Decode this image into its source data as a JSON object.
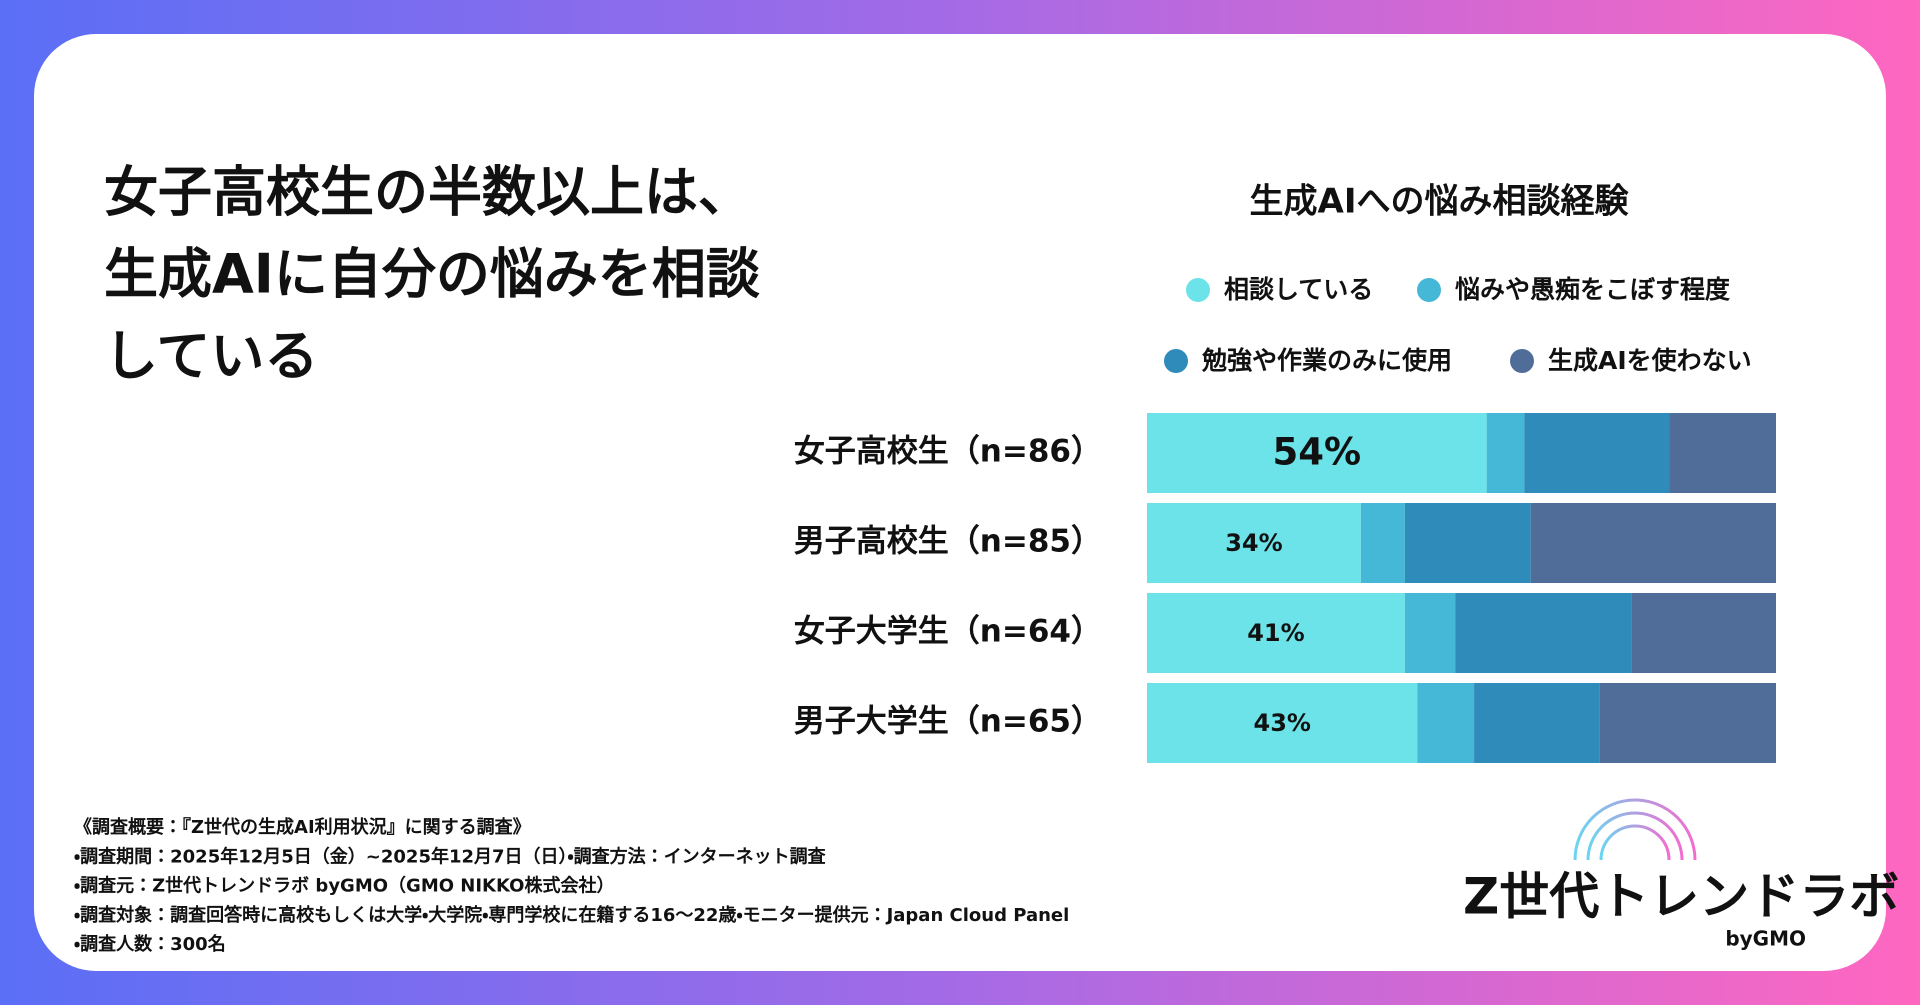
{
  "headline": [
    "女子高校生の半数以上は、",
    "生成AIに自分の悩みを相談",
    "している"
  ],
  "chart_data": {
    "type": "stacked-bar-horizontal",
    "title": "生成AIへの悩み相談経験",
    "categories": [
      "女子高校生（n=86）",
      "男子高校生（n=85）",
      "女子大学生（n=64）",
      "男子大学生（n=65）"
    ],
    "xlim": [
      0,
      100
    ],
    "series": [
      {
        "name": "相談している",
        "color": "#6ce3e8",
        "values": [
          54,
          34,
          41,
          43
        ],
        "value_labels": [
          "54%",
          "34%",
          "41%",
          "43%"
        ]
      },
      {
        "name": "悩みや愚痴をこぼす程度",
        "color": "#45b8d8",
        "values": [
          6,
          7,
          8,
          9
        ]
      },
      {
        "name": "勉強や作業のみに使用",
        "color": "#2e8bba",
        "values": [
          23,
          20,
          28,
          20
        ]
      },
      {
        "name": "生成AIを使わない",
        "color": "#506c99",
        "values": [
          17,
          39,
          23,
          28
        ]
      }
    ]
  },
  "notes": [
    "《調査概要：『Z世代の生成AI利用状況』に関する調査》",
    "・調査期間：2025年12月5日（金）~2025年12月7日（日）・調査方法：インターネット調査",
    "・調査元：Z世代トレンドラボ byGMO（GMO NIKKO株式会社）",
    "・調査対象：調査回答時に高校もしくは大学・大学院・専門学校に在籍する16〜22歳・モニター提供元：Japan Cloud Panel",
    "・調査人数：300名"
  ],
  "logo": {
    "name": "Z世代トレンドラボ",
    "by": "byGMO"
  }
}
